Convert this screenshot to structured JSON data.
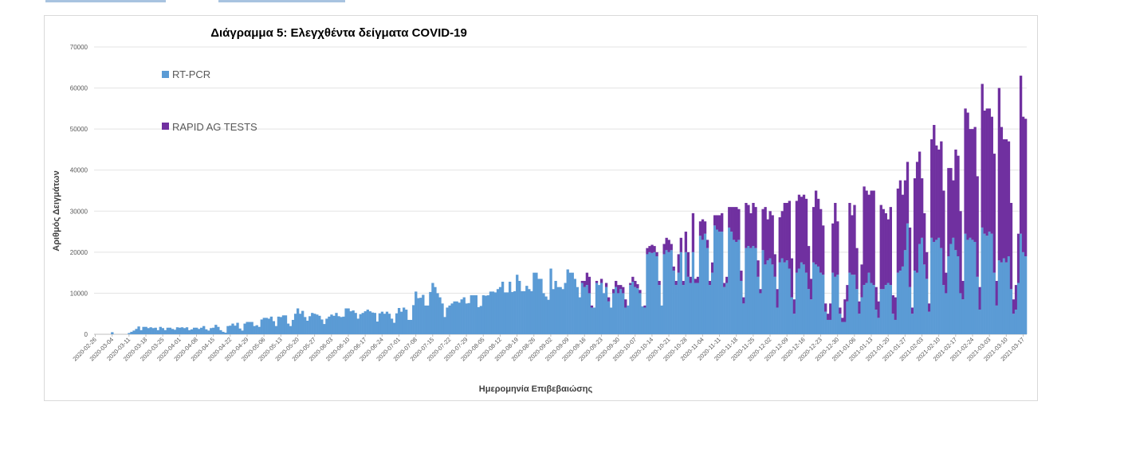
{
  "chart_data": {
    "type": "bar",
    "stacked": true,
    "title": "Διάγραμμα 5: Ελεγχθέντα δείγματα COVID-19",
    "xlabel": "Ημερομηνία Επιβεβαιώσης",
    "ylabel": "Αριθμός Δειγμάτων",
    "ylim": [
      0,
      70000
    ],
    "yticks": [
      0,
      10000,
      20000,
      30000,
      40000,
      50000,
      60000,
      70000
    ],
    "grid": true,
    "legend_position": "top-left",
    "frequency": "daily",
    "xtick_labels": [
      "2020-02-26",
      "2020-03-04",
      "2020-03-11",
      "2020-03-18",
      "2020-03-25",
      "2020-04-01",
      "2020-04-08",
      "2020-04-15",
      "2020-04-22",
      "2020-04-29",
      "2020-05-06",
      "2020-05-13",
      "2020-05-20",
      "2020-05-27",
      "2020-06-03",
      "2020-06-10",
      "2020-06-17",
      "2020-06-24",
      "2020-07-01",
      "2020-07-08",
      "2020-07-15",
      "2020-07-22",
      "2020-07-29",
      "2020-08-05",
      "2020-08-12",
      "2020-08-19",
      "2020-08-26",
      "2020-09-02",
      "2020-09-09",
      "2020-09-16",
      "2020-09-23",
      "2020-09-30",
      "2020-10-07",
      "2020-10-14",
      "2020-10-21",
      "2020-10-28",
      "2020-11-04",
      "2020-11-11",
      "2020-11-18",
      "2020-11-25",
      "2020-12-02",
      "2020-12-09",
      "2020-12-16",
      "2020-12-23",
      "2020-12-30",
      "2021-01-06",
      "2021-01-13",
      "2021-01-20",
      "2021-01-27",
      "2021-02-03",
      "2021-02-10",
      "2021-02-17",
      "2021-02-24",
      "2021-03-03",
      "2021-03-10",
      "2021-03-17"
    ],
    "series": [
      {
        "name": "RT-PCR",
        "color": "#5b9bd5",
        "values": [
          0,
          0,
          0,
          0,
          0,
          0,
          0,
          500,
          0,
          0,
          0,
          0,
          0,
          0,
          300,
          600,
          900,
          1300,
          1900,
          1000,
          1800,
          1800,
          1500,
          1700,
          1500,
          1600,
          1000,
          1800,
          1500,
          1000,
          1600,
          1600,
          1300,
          1100,
          1700,
          1600,
          1700,
          1500,
          1700,
          1000,
          1200,
          1600,
          1600,
          1300,
          1600,
          2000,
          1200,
          900,
          1500,
          1600,
          2300,
          1800,
          1000,
          600,
          400,
          2000,
          2100,
          2600,
          2100,
          2800,
          1400,
          900,
          2600,
          3000,
          3000,
          3000,
          2000,
          2200,
          1800,
          3600,
          4000,
          4000,
          3800,
          4300,
          3200,
          2000,
          4300,
          4200,
          4600,
          4600,
          2600,
          2000,
          3500,
          5000,
          6300,
          5000,
          5700,
          4200,
          3300,
          4400,
          5200,
          5000,
          4800,
          4500,
          3600,
          2500,
          3800,
          4300,
          4800,
          4500,
          5200,
          4400,
          4200,
          4300,
          6300,
          6300,
          5600,
          5800,
          5200,
          3800,
          4900,
          5200,
          5600,
          6000,
          5600,
          5300,
          5200,
          3100,
          5100,
          5500,
          5000,
          5500,
          5000,
          3800,
          2800,
          5100,
          6400,
          5500,
          6500,
          6000,
          3500,
          3500,
          7100,
          10400,
          8800,
          8900,
          9600,
          7000,
          7000,
          10300,
          12500,
          11500,
          10000,
          9000,
          7500,
          4200,
          6500,
          7000,
          7500,
          8000,
          8000,
          7700,
          8500,
          9000,
          7500,
          7600,
          9500,
          9500,
          9500,
          6600,
          6900,
          9500,
          9400,
          9500,
          10400,
          10400,
          10200,
          11000,
          11500,
          12800,
          10200,
          10200,
          12800,
          10300,
          10500,
          14500,
          13000,
          10500,
          10500,
          11800,
          11000,
          10500,
          15000,
          15000,
          13500,
          13500,
          10000,
          9200,
          8400,
          16000,
          11000,
          13000,
          11500,
          11500,
          11000,
          12500,
          15800,
          15000,
          15000,
          13500,
          11500,
          9000,
          12500,
          11500,
          12000,
          10000,
          6500,
          6500,
          12500,
          12000,
          12500,
          10000,
          11500,
          8000,
          6500,
          10000,
          11500,
          10000,
          11000,
          10000,
          6500,
          7000,
          12000,
          12800,
          11500,
          11200,
          10000,
          6800,
          6500,
          19500,
          20000,
          19800,
          20000,
          19000,
          12000,
          7000,
          19500,
          20500,
          20000,
          20500,
          15500,
          12000,
          15000,
          20000,
          12000,
          20000,
          14000,
          12500,
          20000,
          12500,
          12500,
          24000,
          23000,
          24500,
          21000,
          12000,
          15000,
          26500,
          25500,
          25000,
          25000,
          11500,
          12500,
          26000,
          25000,
          23000,
          22500,
          23000,
          13000,
          7500,
          21000,
          21500,
          21000,
          21500,
          21000,
          14000,
          10000,
          20500,
          17000,
          18000,
          18500,
          17000,
          14000,
          6500,
          17500,
          18500,
          17500,
          18000,
          16000,
          9000,
          5000,
          15000,
          16000,
          17500,
          17000,
          15000,
          11000,
          8500,
          17500,
          17000,
          16500,
          15000,
          14500,
          5500,
          3500,
          3500,
          15000,
          14000,
          14500,
          5000,
          3000,
          3000,
          8000,
          15000,
          14500,
          14500,
          11000,
          5000,
          9000,
          12000,
          12500,
          15000,
          12500,
          12000,
          6000,
          4000,
          11000,
          11000,
          12000,
          12500,
          12000,
          5000,
          3500,
          15000,
          15500,
          16500,
          20500,
          27000,
          11500,
          5000,
          15500,
          15000,
          22000,
          23500,
          17000,
          13500,
          5500,
          23500,
          22500,
          23000,
          23500,
          21000,
          12000,
          10000,
          19000,
          22000,
          23500,
          20500,
          19000,
          10000,
          8500,
          24500,
          23000,
          23500,
          23000,
          22500,
          14000,
          6000,
          26000,
          24500,
          24000,
          25000,
          24500,
          15000,
          7000,
          18000,
          17500,
          18500,
          17500,
          19000,
          11000,
          5000,
          6000,
          12500,
          24500,
          20000,
          19000
        ]
      },
      {
        "name": "RAPID AG TESTS",
        "color": "#7030a0",
        "values": [
          0,
          0,
          0,
          0,
          0,
          0,
          0,
          0,
          0,
          0,
          0,
          0,
          0,
          0,
          0,
          0,
          0,
          0,
          0,
          0,
          0,
          0,
          0,
          0,
          0,
          0,
          0,
          0,
          0,
          0,
          0,
          0,
          0,
          0,
          0,
          0,
          0,
          0,
          0,
          0,
          0,
          0,
          0,
          0,
          0,
          0,
          0,
          0,
          0,
          0,
          0,
          0,
          0,
          0,
          0,
          0,
          0,
          0,
          0,
          0,
          0,
          0,
          0,
          0,
          0,
          0,
          0,
          0,
          0,
          0,
          0,
          0,
          0,
          0,
          0,
          0,
          0,
          0,
          0,
          0,
          0,
          0,
          0,
          0,
          0,
          0,
          0,
          0,
          0,
          0,
          0,
          0,
          0,
          0,
          0,
          0,
          0,
          0,
          0,
          0,
          0,
          0,
          0,
          0,
          0,
          0,
          0,
          0,
          0,
          0,
          0,
          0,
          0,
          0,
          0,
          0,
          0,
          0,
          0,
          0,
          0,
          0,
          0,
          0,
          0,
          0,
          0,
          0,
          0,
          0,
          0,
          0,
          0,
          0,
          0,
          0,
          0,
          0,
          0,
          0,
          0,
          0,
          0,
          0,
          0,
          0,
          0,
          0,
          0,
          0,
          0,
          0,
          0,
          0,
          0,
          0,
          0,
          0,
          0,
          0,
          0,
          0,
          0,
          0,
          0,
          0,
          0,
          0,
          0,
          0,
          0,
          0,
          0,
          0,
          0,
          0,
          0,
          0,
          0,
          0,
          0,
          0,
          0,
          0,
          0,
          0,
          0,
          0,
          0,
          0,
          0,
          0,
          0,
          0,
          0,
          0,
          0,
          0,
          0,
          0,
          0,
          0,
          500,
          1500,
          3000,
          4000,
          500,
          0,
          500,
          0,
          1000,
          0,
          1000,
          1000,
          0,
          1000,
          1500,
          2000,
          1000,
          1500,
          2000,
          0,
          500,
          1200,
          1500,
          1000,
          800,
          0,
          500,
          1500,
          1500,
          2000,
          1500,
          1000,
          1000,
          0,
          2500,
          3000,
          3000,
          1500,
          1000,
          1000,
          4500,
          3500,
          1000,
          5000,
          6000,
          1500,
          9500,
          1000,
          1500,
          3500,
          5000,
          3000,
          2000,
          1000,
          2500,
          2500,
          3500,
          4000,
          4500,
          1000,
          1500,
          5000,
          6000,
          8000,
          8500,
          7500,
          2500,
          1500,
          11000,
          10000,
          8500,
          10500,
          10000,
          4000,
          1000,
          10000,
          14000,
          10000,
          11500,
          12000,
          5500,
          4500,
          11000,
          11500,
          14500,
          14000,
          16500,
          9500,
          3500,
          17500,
          18000,
          16000,
          17000,
          18000,
          10500,
          5000,
          13500,
          18000,
          16500,
          15500,
          12000,
          2000,
          1500,
          4000,
          12000,
          18000,
          13000,
          1500,
          1000,
          5500,
          4000,
          17000,
          14500,
          17000,
          10000,
          3000,
          8000,
          24000,
          22500,
          19000,
          22500,
          23000,
          5500,
          4000,
          20500,
          19500,
          17500,
          15500,
          19000,
          4500,
          5500,
          20500,
          22000,
          17500,
          17000,
          15000,
          14500,
          1500,
          22500,
          27000,
          22500,
          14500,
          12500,
          6500,
          2000,
          24000,
          28500,
          23000,
          21500,
          26000,
          23000,
          5000,
          21500,
          18500,
          14000,
          24500,
          24500,
          20000,
          4500,
          30500,
          31000,
          26500,
          27000,
          28000,
          24500,
          5500,
          35000,
          30000,
          31000,
          30000,
          28500,
          29000,
          6000,
          42000,
          33000,
          29000,
          30000,
          28000,
          21000,
          3500,
          6000,
          12000,
          38500,
          33000,
          33500
        ]
      }
    ]
  }
}
